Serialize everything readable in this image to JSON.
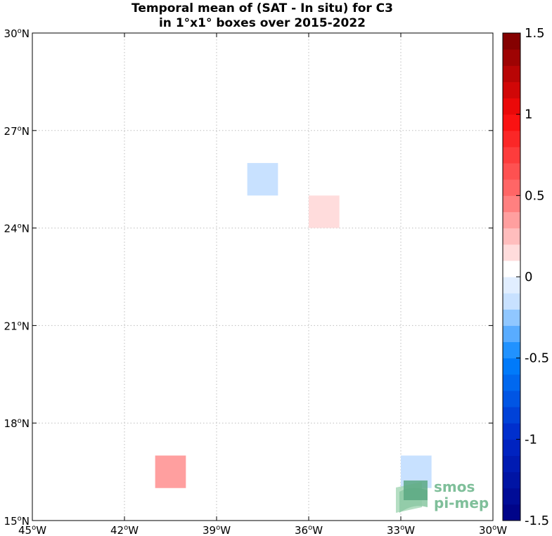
{
  "title": {
    "line1": "Temporal mean of (SAT - In situ) for C3",
    "line2": "in 1°x1° boxes over 2015-2022"
  },
  "map": {
    "lon_range": [
      -45,
      -30
    ],
    "lat_range": [
      15,
      30
    ],
    "grid": true,
    "x_ticks": [
      {
        "value": -45,
        "deg": "45",
        "hemi": "W"
      },
      {
        "value": -42,
        "deg": "42",
        "hemi": "W"
      },
      {
        "value": -39,
        "deg": "39",
        "hemi": "W"
      },
      {
        "value": -36,
        "deg": "36",
        "hemi": "W"
      },
      {
        "value": -33,
        "deg": "33",
        "hemi": "W"
      },
      {
        "value": -30,
        "deg": "30",
        "hemi": "W"
      }
    ],
    "y_ticks": [
      {
        "value": 15,
        "deg": "15",
        "hemi": "N"
      },
      {
        "value": 18,
        "deg": "18",
        "hemi": "N"
      },
      {
        "value": 21,
        "deg": "21",
        "hemi": "N"
      },
      {
        "value": 24,
        "deg": "24",
        "hemi": "N"
      },
      {
        "value": 27,
        "deg": "27",
        "hemi": "N"
      },
      {
        "value": 30,
        "deg": "30",
        "hemi": "N"
      }
    ],
    "boxes": [
      {
        "lon": -38,
        "lat": 25,
        "value": -0.15
      },
      {
        "lon": -36,
        "lat": 24,
        "value": 0.15
      },
      {
        "lon": -41,
        "lat": 16,
        "value": 0.4
      },
      {
        "lon": -33,
        "lat": 16,
        "value": -0.15
      }
    ]
  },
  "colorbar": {
    "min": -1.5,
    "max": 1.5,
    "n_levels": 30,
    "tick_labels": [
      "1.5",
      "1",
      "0.5",
      "0",
      "-0.5",
      "-1",
      "-1.5"
    ],
    "tick_values": [
      1.5,
      1,
      0.5,
      0,
      -0.5,
      -1,
      -1.5
    ]
  },
  "logo": {
    "line1": "smos",
    "line2": "pi-mep"
  }
}
